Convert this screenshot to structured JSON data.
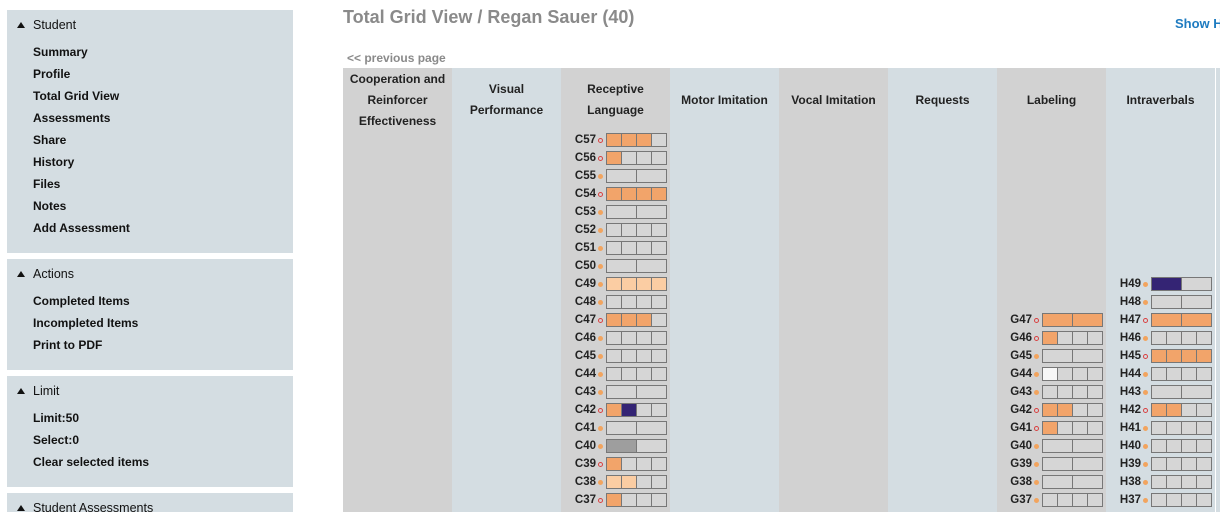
{
  "sidebar": {
    "student": {
      "title": "Student",
      "items": [
        "Summary",
        "Profile",
        "Total Grid View",
        "Assessments",
        "Share",
        "History",
        "Files",
        "Notes",
        "Add Assessment"
      ]
    },
    "actions": {
      "title": "Actions",
      "items": [
        "Completed Items",
        "Incompleted Items",
        "Print to PDF"
      ]
    },
    "limit": {
      "title": "Limit",
      "items": [
        "Limit:50",
        "Select:0",
        "Clear selected items"
      ]
    },
    "student_assessments": {
      "title": "Student Assessments"
    }
  },
  "header": {
    "title": "Total Grid View / Regan Sauer (40)",
    "show_link": "Show H",
    "prev_page": "<< previous page"
  },
  "colors": {
    "empty": "#d6d6d6",
    "orange": "#f2a46a",
    "peach": "#fbcda3",
    "purple": "#342474",
    "gray": "#9e9e9e",
    "white": "#f7f7f7",
    "dot_filled": "#f2a45e",
    "dot_ring": "#d94040"
  },
  "grid": {
    "columns": [
      {
        "title": "Cooperation and Reinforcer Effectiveness",
        "rows": []
      },
      {
        "title": "Visual Performance",
        "rows": []
      },
      {
        "title": "Receptive Language",
        "rows": [
          {
            "code": "C57",
            "dot": "ring",
            "cells": [
              1,
              1,
              1,
              0
            ]
          },
          {
            "code": "C56",
            "dot": "ring",
            "cells": [
              1,
              0,
              0,
              0
            ]
          },
          {
            "code": "C55",
            "dot": "filled",
            "cells": [
              0,
              0
            ]
          },
          {
            "code": "C54",
            "dot": "ring",
            "cells": [
              1,
              1,
              1,
              1
            ]
          },
          {
            "code": "C53",
            "dot": "filled",
            "cells": [
              0,
              0
            ]
          },
          {
            "code": "C52",
            "dot": "filled",
            "cells": [
              0,
              0,
              0,
              0
            ]
          },
          {
            "code": "C51",
            "dot": "filled",
            "cells": [
              0,
              0,
              0,
              0
            ]
          },
          {
            "code": "C50",
            "dot": "filled",
            "cells": [
              0,
              0
            ]
          },
          {
            "code": "C49",
            "dot": "filled",
            "cells": [
              2,
              2,
              2,
              2
            ]
          },
          {
            "code": "C48",
            "dot": "filled",
            "cells": [
              0,
              0,
              0,
              0
            ]
          },
          {
            "code": "C47",
            "dot": "ring",
            "cells": [
              1,
              1,
              1,
              0
            ]
          },
          {
            "code": "C46",
            "dot": "filled",
            "cells": [
              0,
              0,
              0,
              0
            ]
          },
          {
            "code": "C45",
            "dot": "filled",
            "cells": [
              0,
              0,
              0,
              0
            ]
          },
          {
            "code": "C44",
            "dot": "filled",
            "cells": [
              0,
              0,
              0,
              0
            ]
          },
          {
            "code": "C43",
            "dot": "filled",
            "cells": [
              0,
              0
            ]
          },
          {
            "code": "C42",
            "dot": "ring",
            "cells": [
              1,
              3,
              0,
              0
            ]
          },
          {
            "code": "C41",
            "dot": "filled",
            "cells": [
              0,
              0
            ]
          },
          {
            "code": "C40",
            "dot": "filled",
            "cells": [
              4,
              0
            ]
          },
          {
            "code": "C39",
            "dot": "ring",
            "cells": [
              1,
              0,
              0,
              0
            ]
          },
          {
            "code": "C38",
            "dot": "filled",
            "cells": [
              2,
              2,
              0,
              0
            ]
          },
          {
            "code": "C37",
            "dot": "ring",
            "cells": [
              1,
              0,
              0,
              0
            ]
          }
        ]
      },
      {
        "title": "Motor Imitation",
        "rows": []
      },
      {
        "title": "Vocal Imitation",
        "rows": []
      },
      {
        "title": "Requests",
        "rows": []
      },
      {
        "title": "Labeling",
        "rows": [
          {
            "code": "G47",
            "dot": "ring",
            "cells": [
              1,
              1
            ]
          },
          {
            "code": "G46",
            "dot": "ring",
            "cells": [
              1,
              0,
              0,
              0
            ]
          },
          {
            "code": "G45",
            "dot": "filled",
            "cells": [
              0,
              0
            ]
          },
          {
            "code": "G44",
            "dot": "filled",
            "cells": [
              5,
              0,
              0,
              0
            ]
          },
          {
            "code": "G43",
            "dot": "filled",
            "cells": [
              0,
              0,
              0,
              0
            ]
          },
          {
            "code": "G42",
            "dot": "ring",
            "cells": [
              1,
              1,
              0,
              0
            ]
          },
          {
            "code": "G41",
            "dot": "ring",
            "cells": [
              1,
              0,
              0,
              0
            ]
          },
          {
            "code": "G40",
            "dot": "filled",
            "cells": [
              0,
              0
            ]
          },
          {
            "code": "G39",
            "dot": "filled",
            "cells": [
              0,
              0
            ]
          },
          {
            "code": "G38",
            "dot": "filled",
            "cells": [
              0,
              0
            ]
          },
          {
            "code": "G37",
            "dot": "filled",
            "cells": [
              0,
              0,
              0,
              0
            ]
          }
        ]
      },
      {
        "title": "Intraverbals",
        "rows": [
          {
            "code": "H49",
            "dot": "filled",
            "cells": [
              3,
              0
            ]
          },
          {
            "code": "H48",
            "dot": "filled",
            "cells": [
              0,
              0
            ]
          },
          {
            "code": "H47",
            "dot": "ring",
            "cells": [
              1,
              1
            ]
          },
          {
            "code": "H46",
            "dot": "filled",
            "cells": [
              0,
              0,
              0,
              0
            ]
          },
          {
            "code": "H45",
            "dot": "ring",
            "cells": [
              1,
              1,
              1,
              1
            ]
          },
          {
            "code": "H44",
            "dot": "filled",
            "cells": [
              0,
              0,
              0,
              0
            ]
          },
          {
            "code": "H43",
            "dot": "filled",
            "cells": [
              0,
              0
            ]
          },
          {
            "code": "H42",
            "dot": "ring",
            "cells": [
              1,
              1,
              0,
              0
            ]
          },
          {
            "code": "H41",
            "dot": "filled",
            "cells": [
              0,
              0,
              0,
              0
            ]
          },
          {
            "code": "H40",
            "dot": "filled",
            "cells": [
              0,
              0,
              0,
              0
            ]
          },
          {
            "code": "H39",
            "dot": "filled",
            "cells": [
              0,
              0,
              0,
              0
            ]
          },
          {
            "code": "H38",
            "dot": "filled",
            "cells": [
              0,
              0,
              0,
              0
            ]
          },
          {
            "code": "H37",
            "dot": "filled",
            "cells": [
              0,
              0,
              0,
              0
            ]
          }
        ]
      }
    ]
  }
}
